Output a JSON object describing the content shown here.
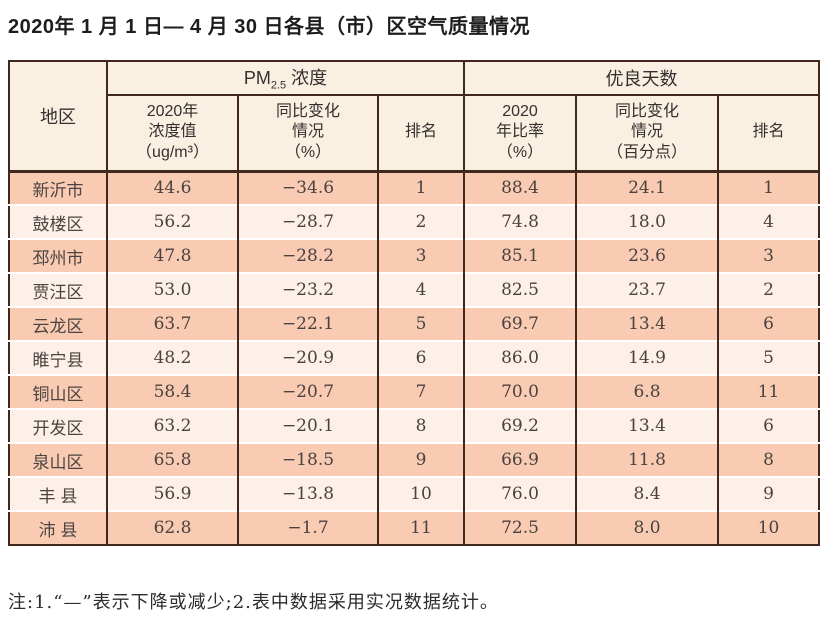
{
  "title": "2020年 1 月 1 日— 4 月 30 日各县（市）区空气质量情况",
  "colors": {
    "border": "#40281e",
    "row_dark": "#f8cbb2",
    "row_light": "#fcf0e8",
    "header_bg": "#faf0e2"
  },
  "table": {
    "region_header": "地区",
    "groups": [
      {
        "prefix": "PM",
        "sub": "2.5",
        "suffix": " 浓度"
      },
      {
        "label": "优良天数"
      }
    ],
    "subheaders": [
      "2020年\n浓度值\n（ug/m³）",
      "同比变化\n情况\n（%）",
      "排名",
      "2020\n年比率\n（%）",
      "同比变化\n情况\n（百分点）",
      "排名"
    ],
    "rows": [
      [
        "新沂市",
        "44.6",
        "−34.6",
        "1",
        "88.4",
        "24.1",
        "1"
      ],
      [
        "鼓楼区",
        "56.2",
        "−28.7",
        "2",
        "74.8",
        "18.0",
        "4"
      ],
      [
        "邳州市",
        "47.8",
        "−28.2",
        "3",
        "85.1",
        "23.6",
        "3"
      ],
      [
        "贾汪区",
        "53.0",
        "−23.2",
        "4",
        "82.5",
        "23.7",
        "2"
      ],
      [
        "云龙区",
        "63.7",
        "−22.1",
        "5",
        "69.7",
        "13.4",
        "6"
      ],
      [
        "睢宁县",
        "48.2",
        "−20.9",
        "6",
        "86.0",
        "14.9",
        "5"
      ],
      [
        "铜山区",
        "58.4",
        "−20.7",
        "7",
        "70.0",
        "6.8",
        "11"
      ],
      [
        "开发区",
        "63.2",
        "−20.1",
        "8",
        "69.2",
        "13.4",
        "6"
      ],
      [
        "泉山区",
        "65.8",
        "−18.5",
        "9",
        "66.9",
        "11.8",
        "8"
      ],
      [
        "丰 县",
        "56.9",
        "−13.8",
        "10",
        "76.0",
        "8.4",
        "9"
      ],
      [
        "沛 县",
        "62.8",
        "−1.7",
        "11",
        "72.5",
        "8.0",
        "10"
      ]
    ]
  },
  "footnote": "注:1.“—”表示下降或减少;2.表中数据采用实况数据统计。"
}
